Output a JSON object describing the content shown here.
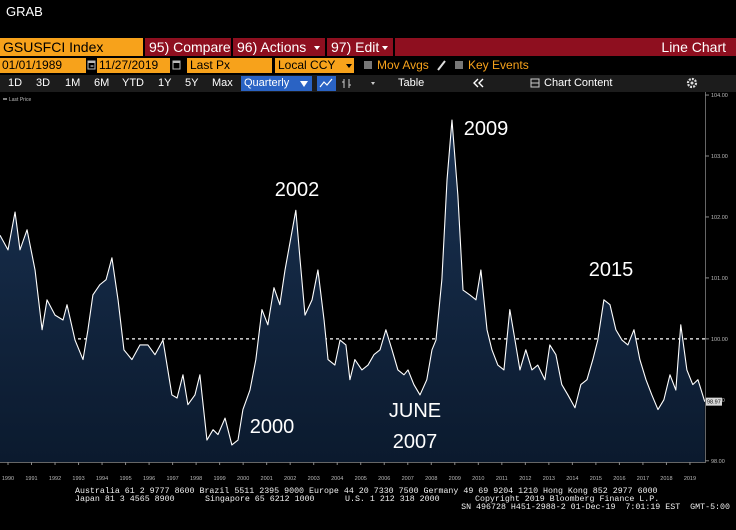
{
  "ui": {
    "title": "GRAB",
    "security": "GSUSFCI Index",
    "menu": [
      "95) Compare",
      "96) Actions",
      "97) Edit"
    ],
    "view": "Line Chart",
    "start_date": "01/01/1989",
    "date_separator": "-",
    "end_date": "11/27/2019",
    "field": "Last Px",
    "currency": "Local CCY",
    "options": [
      "Mov Avgs",
      "Key Events"
    ],
    "ranges": [
      "1D",
      "3D",
      "1M",
      "6M",
      "YTD",
      "1Y",
      "5Y",
      "Max"
    ],
    "frequency": "Quarterly",
    "table": "Table",
    "chart_content": "Chart Content",
    "footer": [
      "Australia 61 2 9777 8600 Brazil 5511 2395 9000 Europe 44 20 7330 7500 Germany 49 69 9204 1210 Hong Kong 852 2977 6000",
      "Japan 81 3 4565 8900",
      "Singapore 65 6212 1000",
      "U.S. 1 212 318 2000",
      "Copyright 2019 Bloomberg Finance L.P.",
      "SN 496728 H451-2988-2 01-Dec-19  7:01:19 EST  GMT-5:00"
    ]
  },
  "chart_data": {
    "type": "area",
    "x": [
      1989.66,
      1990.0,
      1990.3,
      1990.51,
      1990.81,
      1991.15,
      1991.45,
      1991.66,
      1992.0,
      1992.34,
      1992.51,
      1992.85,
      1993.19,
      1993.4,
      1993.61,
      1993.91,
      1994.17,
      1994.42,
      1994.68,
      1994.93,
      1995.27,
      1995.61,
      1995.95,
      1996.25,
      1996.59,
      1996.97,
      1997.19,
      1997.44,
      1997.65,
      1997.95,
      1998.16,
      1998.46,
      1998.72,
      1998.93,
      1999.23,
      1999.52,
      1999.78,
      1999.99,
      2000.29,
      2000.54,
      2000.8,
      2001.05,
      2001.31,
      2001.56,
      2001.78,
      2002.24,
      2002.42,
      2002.63,
      2002.93,
      2003.18,
      2003.44,
      2003.61,
      2003.9,
      2004.12,
      2004.37,
      2004.54,
      2004.75,
      2005.05,
      2005.31,
      2005.56,
      2005.82,
      2006.07,
      2006.33,
      2006.58,
      2006.84,
      2007.01,
      2007.26,
      2007.52,
      2007.81,
      2008.03,
      2008.2,
      2008.45,
      2008.67,
      2008.88,
      2009.13,
      2009.35,
      2009.64,
      2009.9,
      2010.11,
      2010.37,
      2010.58,
      2010.83,
      2011.09,
      2011.34,
      2011.56,
      2011.77,
      2012.02,
      2012.28,
      2012.53,
      2012.83,
      2013.04,
      2013.3,
      2013.55,
      2013.81,
      2014.11,
      2014.36,
      2014.62,
      2014.87,
      2015.08,
      2015.34,
      2015.6,
      2015.85,
      2016.11,
      2016.36,
      2016.62,
      2016.87,
      2017.13,
      2017.38,
      2017.64,
      2017.89,
      2018.15,
      2018.4,
      2018.61,
      2018.87,
      2019.12,
      2019.34,
      2019.63
    ],
    "series": [
      {
        "name": "Last Price",
        "color": "#ffffff",
        "values": [
          101.7,
          101.46,
          102.08,
          101.46,
          101.79,
          101.13,
          100.15,
          100.64,
          100.39,
          100.31,
          100.56,
          99.98,
          99.66,
          100.15,
          100.72,
          100.89,
          100.97,
          101.33,
          100.64,
          99.82,
          99.66,
          99.9,
          99.9,
          99.74,
          99.98,
          99.08,
          99.03,
          99.41,
          98.92,
          99.08,
          99.41,
          98.34,
          98.51,
          98.43,
          98.7,
          98.26,
          98.34,
          98.84,
          99.16,
          99.66,
          100.48,
          100.23,
          100.84,
          100.56,
          101.13,
          102.11,
          101.3,
          100.39,
          100.64,
          101.13,
          100.31,
          99.66,
          99.57,
          99.98,
          99.9,
          99.33,
          99.66,
          99.49,
          99.57,
          99.74,
          99.82,
          100.15,
          99.82,
          99.49,
          99.41,
          99.49,
          99.25,
          99.08,
          99.33,
          99.82,
          99.98,
          100.97,
          102.61,
          103.59,
          102.36,
          100.8,
          100.72,
          100.64,
          101.13,
          100.15,
          99.82,
          99.57,
          99.49,
          100.48,
          99.98,
          99.49,
          99.82,
          99.49,
          99.57,
          99.33,
          99.9,
          99.74,
          99.25,
          99.08,
          98.87,
          99.25,
          99.33,
          99.66,
          99.98,
          100.64,
          100.56,
          100.15,
          99.98,
          99.9,
          100.15,
          99.66,
          99.33,
          99.08,
          98.84,
          99.0,
          99.41,
          99.16,
          100.23,
          99.49,
          99.25,
          99.33,
          98.97
        ],
        "value_labels": [
          null,
          null,
          null,
          null,
          null,
          null,
          null,
          null,
          null,
          null,
          null,
          null,
          null,
          null,
          null,
          null,
          null,
          null,
          null,
          null,
          null,
          null,
          null,
          null,
          null,
          null,
          null,
          null,
          null,
          null,
          null,
          null,
          null,
          null,
          null,
          null,
          null,
          null,
          null,
          null,
          null,
          null,
          null,
          null,
          null,
          null,
          null,
          null,
          null,
          null,
          null,
          null,
          null,
          null,
          null,
          null,
          null,
          null,
          null,
          null,
          null,
          null,
          null,
          null,
          null,
          null,
          null,
          null,
          null,
          null,
          null,
          null,
          null,
          null,
          null,
          null,
          null,
          null,
          null,
          null,
          null,
          null,
          null,
          null,
          null,
          null,
          null,
          null,
          null,
          null,
          null,
          null,
          null,
          null,
          null,
          null,
          null,
          null,
          null,
          null,
          null,
          null,
          null,
          null,
          null,
          null,
          null,
          null,
          null,
          null,
          null,
          null,
          null,
          null,
          null,
          null,
          "98.97"
        ]
      }
    ],
    "xlim": [
      1989.66,
      2019.64
    ],
    "xticks": [
      1990,
      1991,
      1992,
      1993,
      1994,
      1995,
      1996,
      1997,
      1998,
      1999,
      2000,
      2001,
      2002,
      2003,
      2004,
      2005,
      2006,
      2007,
      2008,
      2009,
      2010,
      2011,
      2012,
      2013,
      2014,
      2015,
      2016,
      2017,
      2018,
      2019
    ],
    "ylim": [
      97.98,
      104.05
    ],
    "yticks": [
      {
        "value": 98,
        "label": "98.00"
      },
      {
        "value": 99,
        "label": "99.00"
      },
      {
        "value": 100,
        "label": "100.00"
      },
      {
        "value": 101,
        "label": "101.00"
      },
      {
        "value": 102,
        "label": "102.00"
      },
      {
        "value": 103,
        "label": "103.00"
      },
      {
        "value": 104,
        "label": "104.00"
      }
    ],
    "reference_line": 100,
    "grid": false,
    "annotations": [
      "2009",
      "2002",
      "2015",
      "2000",
      "JUNE",
      "2007"
    ]
  }
}
